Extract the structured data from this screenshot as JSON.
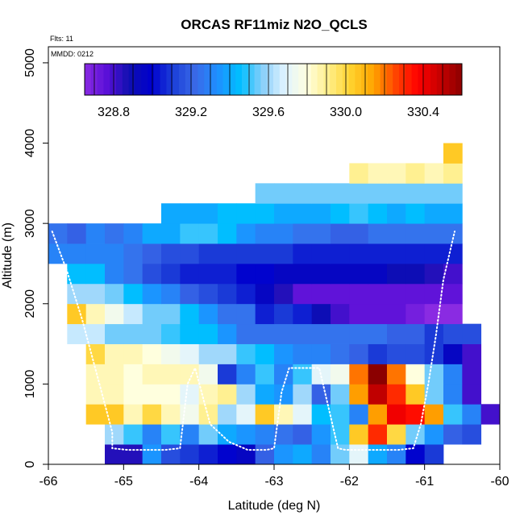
{
  "chart_data": {
    "type": "heatmap",
    "title": "ORCAS RF11miz N2O_QCLS",
    "flights_note": "Flts: 11",
    "date_note": "MMDD: 0212",
    "xlabel": "Latitude (deg N)",
    "ylabel": "Altitude (m)",
    "xlim": [
      -66,
      -60
    ],
    "ylim": [
      0,
      5200
    ],
    "x_ticks": [
      -66,
      -65,
      -64,
      -63,
      -62,
      -61,
      -60
    ],
    "y_ticks": [
      0,
      1000,
      2000,
      3000,
      4000,
      5000
    ],
    "cell_width_deg": 0.25,
    "cell_height_m": 250,
    "colorbar": {
      "range": [
        328.65,
        330.6
      ],
      "ticks": [
        "328.8",
        "329.2",
        "329.6",
        "330.0",
        "330.4"
      ],
      "tick_values": [
        328.8,
        329.2,
        329.6,
        330.0,
        330.4
      ],
      "colors": [
        "#8a2be2",
        "#5a10d8",
        "#1010b0",
        "#0000cd",
        "#1c3fd8",
        "#3a6ae8",
        "#1e90ff",
        "#00bfff",
        "#87cefa",
        "#dff3ff",
        "#ffffe0",
        "#ffee88",
        "#ffd22e",
        "#ffa500",
        "#ff4500",
        "#ff0000",
        "#c80000",
        "#8b0000"
      ]
    },
    "rows": [
      {
        "bottom": 0,
        "lon_start": -65.25,
        "values": [
          328.85,
          328.85,
          329.35,
          329.15,
          329.1,
          329.05,
          329.0,
          328.95,
          329.2,
          329.35,
          329.4,
          329.3,
          329.55,
          329.7,
          329.4,
          329.3,
          329.0,
          329.1
        ]
      },
      {
        "bottom": 250,
        "lon_start": -65.25,
        "values": [
          329.6,
          329.5,
          329.3,
          329.5,
          329.3,
          329.55,
          329.4,
          329.35,
          329.3,
          329.25,
          329.2,
          329.35,
          329.5,
          330.05,
          330.3,
          330.0,
          329.55,
          329.35,
          329.2,
          329.15
        ]
      },
      {
        "bottom": 500,
        "lon_start": -65.5,
        "values": [
          330.05,
          330.05,
          329.85,
          330.0,
          329.85,
          329.75,
          329.9,
          329.6,
          329.7,
          330.05,
          329.85,
          329.7,
          329.45,
          329.5,
          329.3,
          330.15,
          330.4,
          330.35,
          330.15,
          329.5,
          329.3,
          328.8
        ]
      },
      {
        "bottom": 750,
        "lon_start": -65.5,
        "values": [
          329.85,
          329.85,
          329.8,
          329.8,
          329.8,
          329.7,
          329.85,
          329.9,
          329.6,
          329.4,
          329.35,
          329.6,
          329.2,
          329.55,
          330.15,
          330.5,
          330.3,
          330.05,
          329.55,
          329.3,
          328.8
        ]
      },
      {
        "bottom": 1000,
        "lon_start": -65.5,
        "values": [
          329.85,
          329.85,
          329.8,
          329.85,
          329.85,
          329.85,
          329.75,
          329.1,
          329.3,
          329.5,
          329.3,
          329.5,
          329.7,
          329.75,
          330.2,
          330.6,
          330.2,
          329.8,
          329.55,
          329.3,
          328.8
        ]
      },
      {
        "bottom": 1250,
        "lon_start": -65.5,
        "values": [
          330.0,
          329.85,
          329.85,
          329.8,
          329.75,
          329.7,
          329.6,
          329.6,
          329.5,
          329.45,
          329.35,
          329.3,
          329.3,
          329.25,
          329.2,
          329.1,
          329.15,
          329.15,
          329.1,
          328.95,
          328.8
        ]
      },
      {
        "bottom": 1500,
        "lon_start": -65.75,
        "values": [
          329.65,
          329.65,
          329.55,
          329.55,
          329.55,
          329.5,
          329.45,
          329.45,
          329.35,
          329.25,
          329.25,
          329.25,
          329.25,
          329.25,
          329.25,
          329.25,
          329.25,
          329.2,
          329.2,
          329.1,
          329.15,
          329.15
        ]
      },
      {
        "bottom": 1750,
        "lon_start": -65.75,
        "values": [
          330.05,
          329.85,
          329.75,
          329.65,
          329.55,
          329.55,
          329.45,
          329.35,
          329.25,
          329.25,
          329.05,
          329.1,
          329.05,
          328.9,
          328.8,
          328.75,
          328.75,
          328.75,
          328.7,
          328.6,
          328.5
        ]
      },
      {
        "bottom": 2000,
        "lon_start": -65.75,
        "values": [
          329.6,
          329.6,
          329.55,
          329.45,
          329.35,
          329.3,
          329.2,
          329.15,
          329.1,
          329.05,
          328.95,
          328.85,
          328.75,
          328.75,
          328.75,
          328.75,
          328.75,
          328.75,
          328.75,
          328.75,
          328.75
        ]
      },
      {
        "bottom": 2250,
        "lon_start": -65.75,
        "values": [
          329.45,
          329.45,
          329.3,
          329.25,
          329.15,
          329.1,
          329.05,
          329.05,
          329.05,
          329.0,
          329.0,
          328.95,
          328.95,
          328.95,
          328.95,
          328.95,
          328.95,
          328.9,
          328.9,
          328.85,
          328.8
        ]
      },
      {
        "bottom": 2500,
        "lon_start": -66.0,
        "values": [
          329.3,
          329.3,
          329.3,
          329.3,
          329.25,
          329.2,
          329.15,
          329.15,
          329.1,
          329.1,
          329.1,
          329.1,
          329.1,
          329.05,
          329.05,
          329.05,
          329.05,
          329.05,
          329.05,
          329.05,
          329.05,
          329.05
        ]
      },
      {
        "bottom": 2750,
        "lon_start": -66.0,
        "values": [
          329.25,
          329.2,
          329.3,
          329.25,
          329.3,
          329.4,
          329.4,
          329.5,
          329.5,
          329.45,
          329.35,
          329.3,
          329.3,
          329.25,
          329.25,
          329.2,
          329.2,
          329.25,
          329.25,
          329.25,
          329.25,
          329.25
        ]
      },
      {
        "bottom": 3000,
        "lon_start": -64.5,
        "values": [
          329.4,
          329.4,
          329.4,
          329.45,
          329.45,
          329.45,
          329.4,
          329.4,
          329.4,
          329.45,
          329.5,
          329.45,
          329.4,
          329.45,
          329.4,
          329.4
        ]
      },
      {
        "bottom": 3250,
        "lon_start": -63.25,
        "values": [
          329.55,
          329.55,
          329.55,
          329.55,
          329.55,
          329.55,
          329.55,
          329.55,
          329.55,
          329.55,
          329.55
        ]
      },
      {
        "bottom": 3500,
        "lon_start": -62.0,
        "values": [
          329.9,
          329.85,
          329.85,
          329.9,
          329.85,
          329.9
        ]
      },
      {
        "bottom": 3750,
        "lon_start": -60.75,
        "values": [
          330.05
        ]
      }
    ],
    "flight_track": {
      "lat": [
        -65.95,
        -65.75,
        -65.55,
        -65.35,
        -65.15,
        -65.15,
        -64.95,
        -64.7,
        -64.45,
        -64.25,
        -64.15,
        -64.05,
        -63.85,
        -63.6,
        -63.4,
        -63.35,
        -63.25,
        -63.1,
        -63.0,
        -62.9,
        -62.8,
        -62.5,
        -62.4,
        -62.35,
        -62.25,
        -62.15,
        -62.05,
        -61.85,
        -61.6,
        -61.35,
        -61.15,
        -61.05,
        -60.95,
        -60.85,
        -60.75,
        -60.6
      ],
      "alt": [
        2900,
        2400,
        1800,
        1100,
        400,
        200,
        180,
        180,
        180,
        200,
        1000,
        1200,
        500,
        280,
        200,
        180,
        180,
        180,
        200,
        900,
        1200,
        1200,
        1200,
        1000,
        600,
        200,
        180,
        180,
        180,
        180,
        200,
        500,
        1000,
        1600,
        2300,
        2900
      ]
    }
  }
}
